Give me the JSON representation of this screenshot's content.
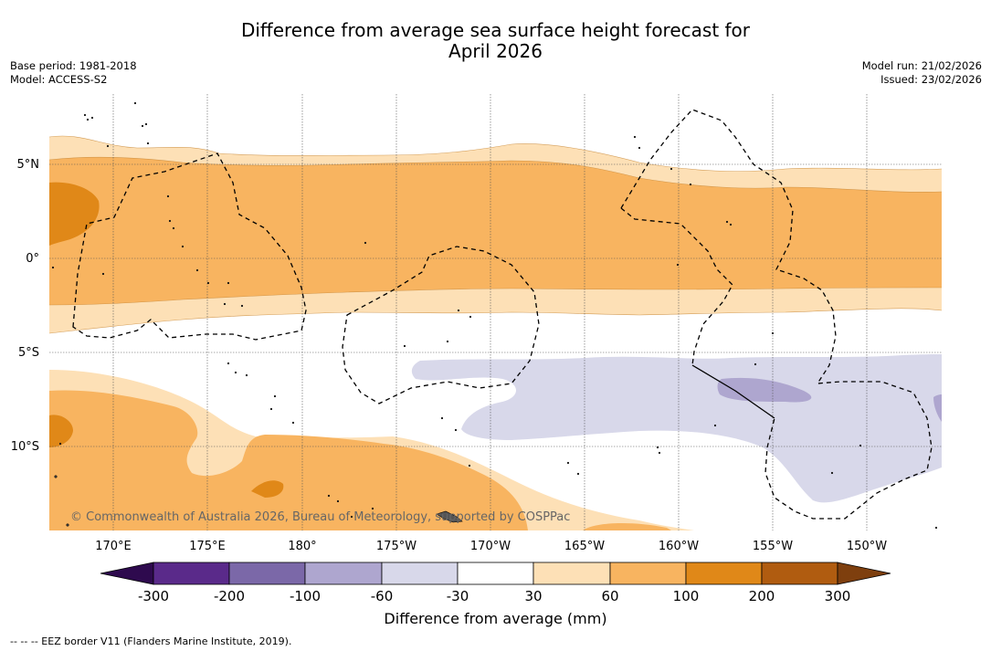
{
  "title": {
    "line1": "Difference from average sea surface height forecast for",
    "line2": "April 2026"
  },
  "meta": {
    "base_period": "Base period: 1981-2018",
    "model": "Model: ACCESS-S2",
    "model_run": "Model run: 21/02/2026",
    "issued": "Issued: 23/02/2026"
  },
  "map": {
    "lat_labels": [
      "5°N",
      "0°",
      "5°S",
      "10°S"
    ],
    "lon_labels": [
      "170°E",
      "175°E",
      "180°",
      "175°W",
      "170°W",
      "165°W",
      "160°W",
      "155°W",
      "150°W"
    ],
    "copyright": "© Commonwealth of Australia 2026, Bureau of Meteorology, supported by COSPPac"
  },
  "colorbar": {
    "ticks": [
      "-300",
      "-200",
      "-100",
      "-60",
      "-30",
      "30",
      "60",
      "100",
      "200",
      "300"
    ],
    "colors": [
      "#5a2a8a",
      "#7b68a8",
      "#aea6cf",
      "#d8d8ea",
      "#ffffff",
      "#fde0b6",
      "#f8b460",
      "#e08818",
      "#b05c10"
    ],
    "under_color": "#2e0a4e",
    "over_color": "#7e3f0e",
    "label": "Difference from average (mm)"
  },
  "footnote": "--  --  -- EEZ border V11 (Flanders Marine Institute, 2019)."
}
